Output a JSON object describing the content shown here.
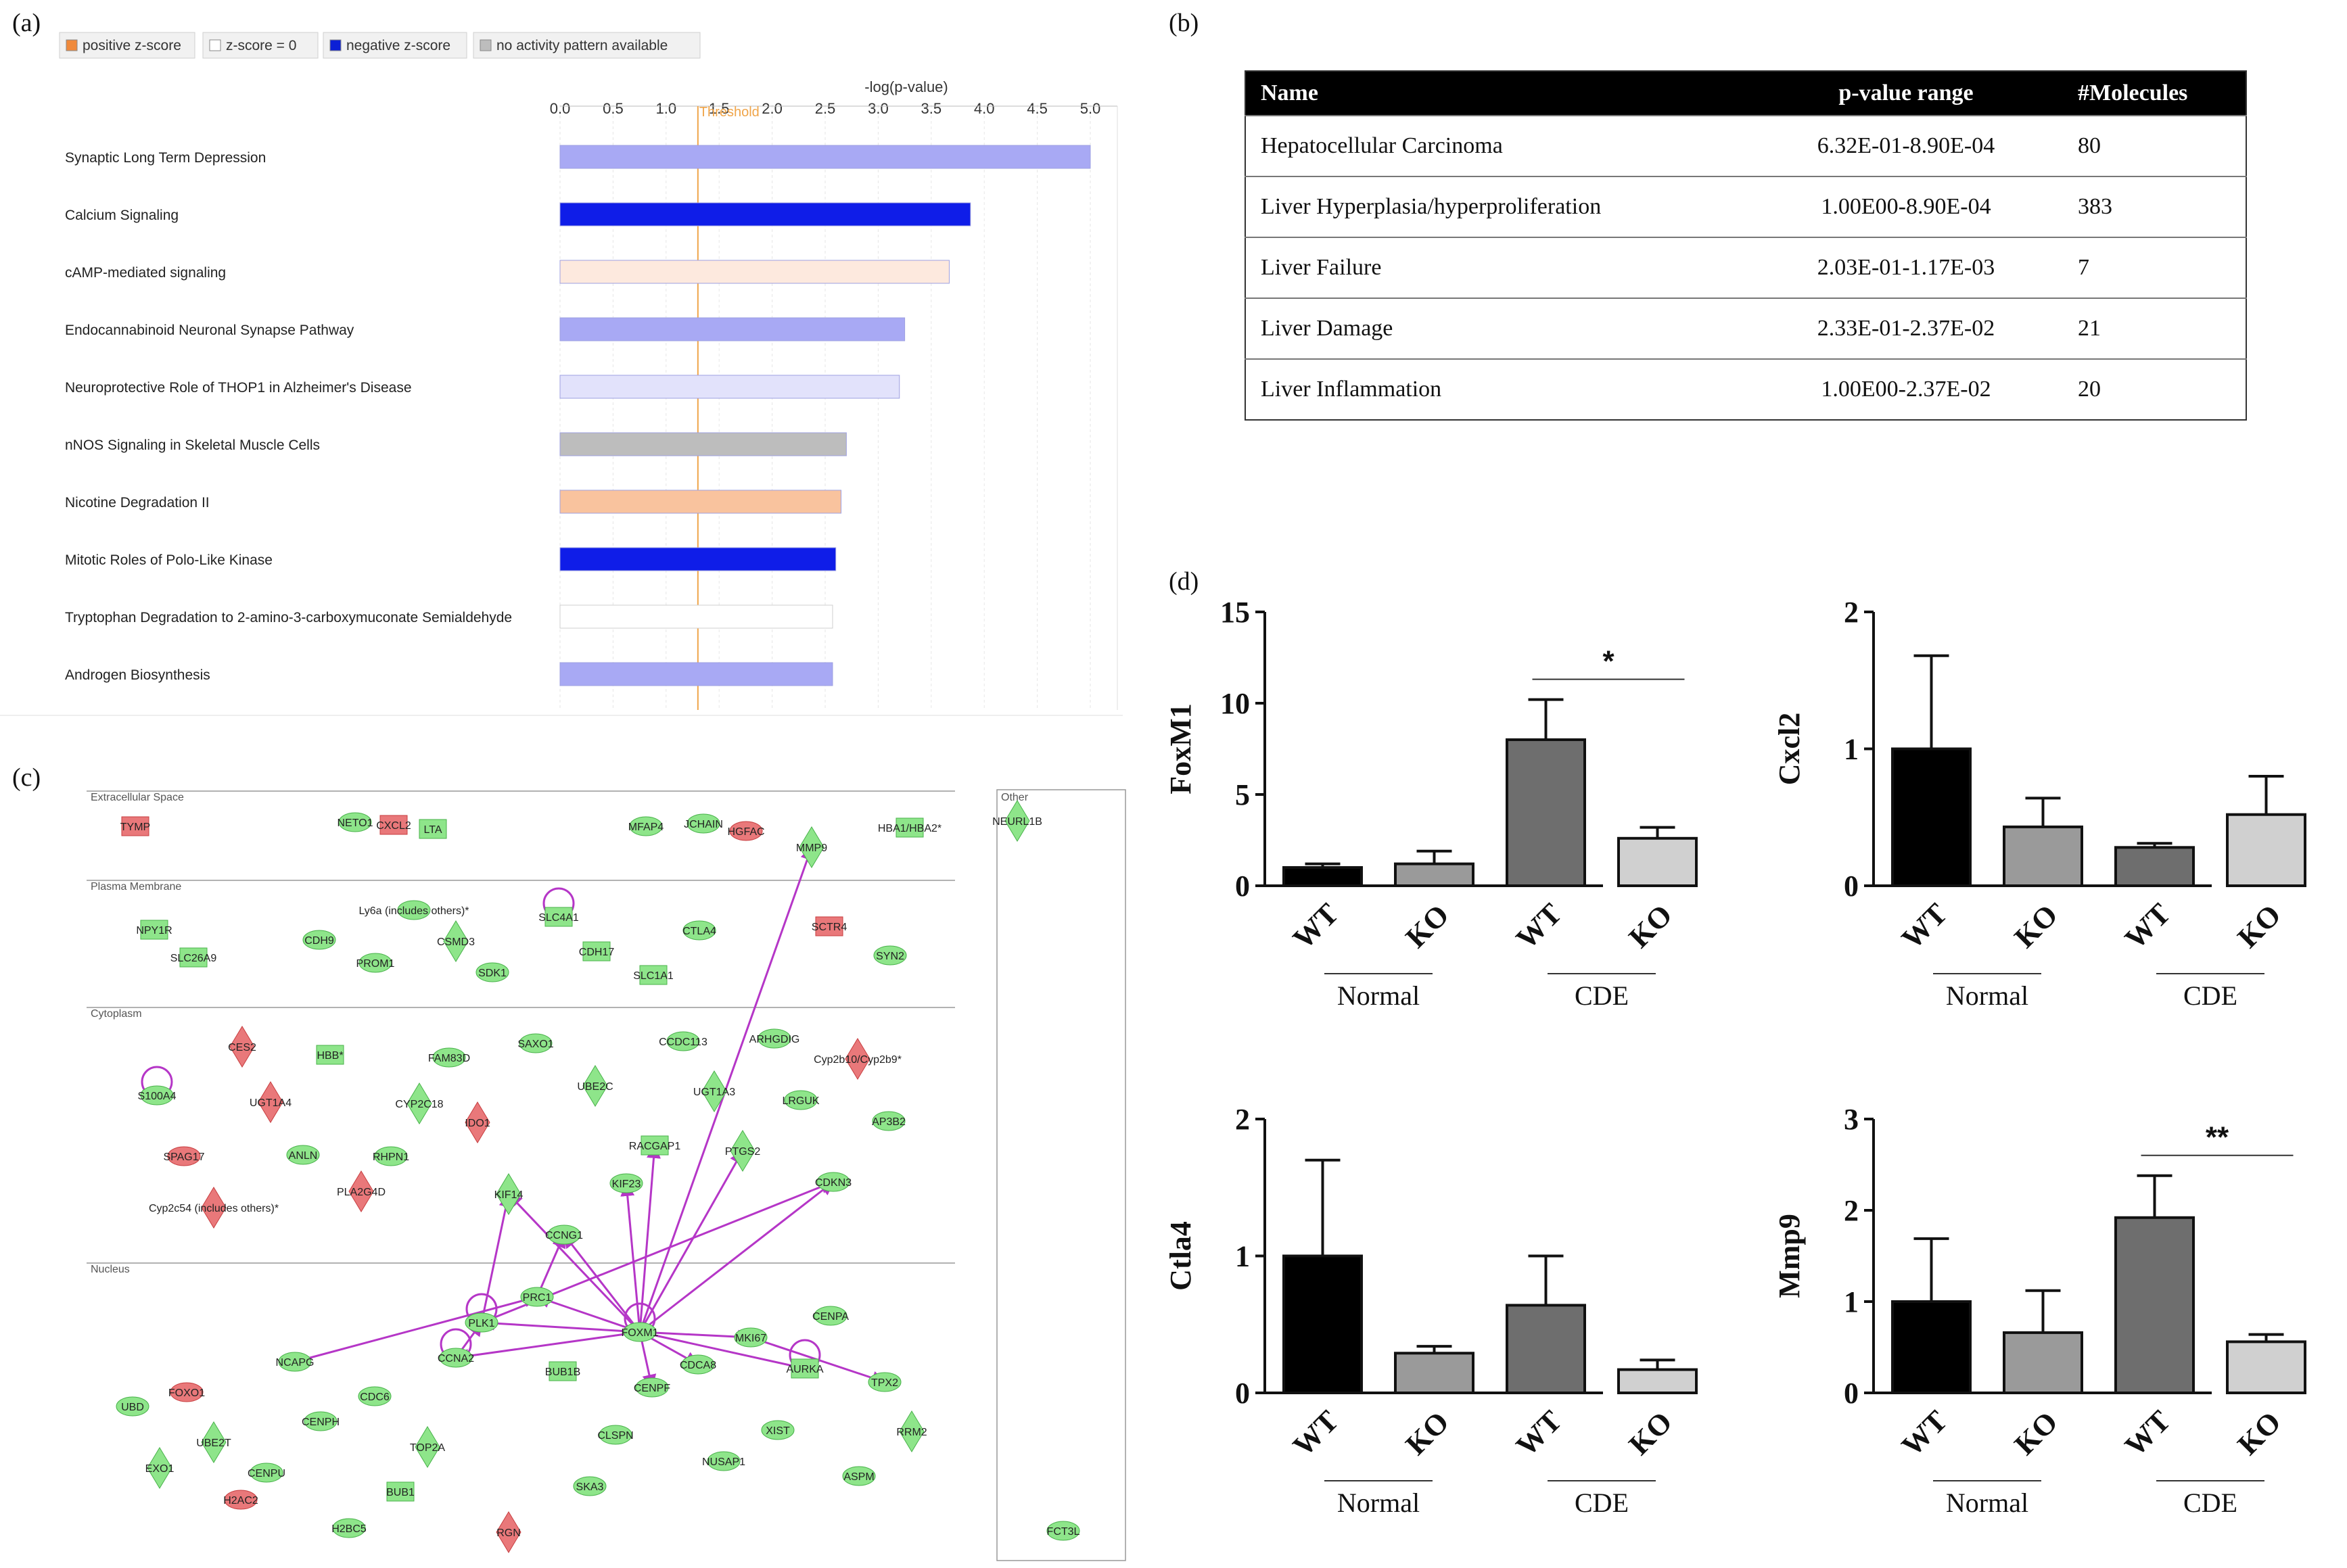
{
  "panels": {
    "a": "(a)",
    "b": "(b)",
    "c": "(c)",
    "d": "(d)"
  },
  "legend_a": [
    {
      "label": "positive z-score",
      "color": "#f08a3c"
    },
    {
      "label": "z-score = 0",
      "color": "#ffffff"
    },
    {
      "label": "negative z-score",
      "color": "#0b1fd6"
    },
    {
      "label": "no activity pattern available",
      "color": "#bdbdbd"
    }
  ],
  "chart_data": [
    {
      "type": "bar",
      "orientation": "horizontal",
      "panel": "a",
      "title": "-log(p-value)",
      "threshold_label": "Threshold",
      "threshold": 1.3,
      "xlim": [
        0,
        5.0
      ],
      "ticks": [
        "0.0",
        "0.5",
        "1.0",
        "1.5",
        "2.0",
        "2.5",
        "3.0",
        "3.5",
        "4.0",
        "4.5",
        "5.0"
      ],
      "categories": [
        "Synaptic Long Term Depression",
        "Calcium Signaling",
        "cAMP-mediated signaling",
        "Endocannabinoid Neuronal Synapse Pathway",
        "Neuroprotective Role of THOP1 in Alzheimer's Disease",
        "nNOS Signaling in Skeletal Muscle Cells",
        "Nicotine Degradation II",
        "Mitotic Roles of Polo-Like Kinase",
        "Tryptophan Degradation to 2-amino-3-carboxymuconate Semialdehyde",
        "Androgen Biosynthesis"
      ],
      "values": [
        5.0,
        3.87,
        3.67,
        3.25,
        3.2,
        2.7,
        2.65,
        2.6,
        2.57,
        2.57
      ],
      "colors": [
        "#a8a9f4",
        "#0f1de8",
        "#fde9de",
        "#a8a9f4",
        "#e2e2fb",
        "#bdbdbd",
        "#f9c39e",
        "#0f1de8",
        "#ffffff",
        "#a8a9f4"
      ]
    },
    {
      "type": "bar",
      "panel": "d",
      "ylabel": "FoxM1",
      "ylim": [
        0,
        15
      ],
      "yticks": [
        "0",
        "5",
        "10",
        "15"
      ],
      "categories": [
        "WT",
        "KO",
        "WT",
        "KO"
      ],
      "values": [
        1.0,
        1.2,
        8.0,
        2.6
      ],
      "errors": [
        0.2,
        0.7,
        2.2,
        0.6
      ],
      "colors": [
        "#000000",
        "#9a9a9a",
        "#6e6e6e",
        "#d0d0d0"
      ],
      "groups": [
        "Normal",
        "CDE"
      ],
      "significance": {
        "label": "*",
        "between": [
          2,
          3
        ]
      }
    },
    {
      "type": "bar",
      "panel": "d",
      "ylabel": "Cxcl2",
      "ylim": [
        0,
        2
      ],
      "yticks": [
        "0",
        "1",
        "2"
      ],
      "categories": [
        "WT",
        "KO",
        "WT",
        "KO"
      ],
      "values": [
        1.0,
        0.43,
        0.28,
        0.52
      ],
      "errors": [
        0.68,
        0.21,
        0.03,
        0.28
      ],
      "colors": [
        "#000000",
        "#9a9a9a",
        "#6e6e6e",
        "#d0d0d0"
      ],
      "groups": [
        "Normal",
        "CDE"
      ],
      "significance": null
    },
    {
      "type": "bar",
      "panel": "d",
      "ylabel": "Ctla4",
      "ylim": [
        0,
        2
      ],
      "yticks": [
        "0",
        "1",
        "2"
      ],
      "categories": [
        "WT",
        "KO",
        "WT",
        "KO"
      ],
      "values": [
        1.0,
        0.29,
        0.64,
        0.17
      ],
      "errors": [
        0.7,
        0.05,
        0.36,
        0.07
      ],
      "colors": [
        "#000000",
        "#9a9a9a",
        "#6e6e6e",
        "#d0d0d0"
      ],
      "groups": [
        "Normal",
        "CDE"
      ],
      "significance": null
    },
    {
      "type": "bar",
      "panel": "d",
      "ylabel": "Mmp9",
      "ylim": [
        0,
        3
      ],
      "yticks": [
        "0",
        "1",
        "2",
        "3"
      ],
      "categories": [
        "WT",
        "KO",
        "WT",
        "KO"
      ],
      "values": [
        1.0,
        0.66,
        1.92,
        0.56
      ],
      "errors": [
        0.69,
        0.46,
        0.46,
        0.08
      ],
      "colors": [
        "#000000",
        "#9a9a9a",
        "#6e6e6e",
        "#d0d0d0"
      ],
      "groups": [
        "Normal",
        "CDE"
      ],
      "significance": {
        "label": "**",
        "between": [
          2,
          3
        ]
      }
    }
  ],
  "table_b": {
    "headers": [
      "Name",
      "p-value range",
      "#Molecules"
    ],
    "rows": [
      [
        "Hepatocellular Carcinoma",
        "6.32E-01-8.90E-04",
        "80"
      ],
      [
        "Liver Hyperplasia/hyperproliferation",
        "1.00E00-8.90E-04",
        "383"
      ],
      [
        "Liver Failure",
        "2.03E-01-1.17E-03",
        "7"
      ],
      [
        "Liver Damage",
        "2.33E-01-2.37E-02",
        "21"
      ],
      [
        "Liver Inflammation",
        "1.00E00-2.37E-02",
        "20"
      ]
    ]
  },
  "network_c": {
    "compartments": [
      "Extracellular Space",
      "Plasma Membrane",
      "Cytoplasm",
      "Nucleus"
    ],
    "other_label": "Other",
    "nodes": [
      {
        "label": "TYMP",
        "color": "red",
        "shape": "rect"
      },
      {
        "label": "NETO1",
        "color": "green",
        "shape": "ellipse"
      },
      {
        "label": "CXCL2",
        "color": "red",
        "shape": "rect"
      },
      {
        "label": "LTA",
        "color": "green",
        "shape": "rect"
      },
      {
        "label": "MFAP4",
        "color": "green",
        "shape": "ellipse"
      },
      {
        "label": "JCHAIN",
        "color": "green",
        "shape": "ellipse"
      },
      {
        "label": "HGFAC",
        "color": "red",
        "shape": "ellipse"
      },
      {
        "label": "MMP9",
        "color": "green",
        "shape": "diamond"
      },
      {
        "label": "HBA1/HBA2*",
        "color": "green",
        "shape": "rect"
      },
      {
        "label": "NEURL1B",
        "color": "green",
        "shape": "diamond"
      },
      {
        "label": "NPY1R",
        "color": "green",
        "shape": "rect"
      },
      {
        "label": "SLC26A9",
        "color": "green",
        "shape": "rect"
      },
      {
        "label": "CDH9",
        "color": "green",
        "shape": "ellipse"
      },
      {
        "label": "Ly6a (includes others)*",
        "color": "green",
        "shape": "ellipse"
      },
      {
        "label": "CSMD3",
        "color": "green",
        "shape": "diamond"
      },
      {
        "label": "PROM1",
        "color": "green",
        "shape": "ellipse"
      },
      {
        "label": "SDK1",
        "color": "green",
        "shape": "ellipse"
      },
      {
        "label": "SLC4A1",
        "color": "green",
        "shape": "rect"
      },
      {
        "label": "CDH17",
        "color": "green",
        "shape": "rect"
      },
      {
        "label": "CTLA4",
        "color": "green",
        "shape": "ellipse"
      },
      {
        "label": "SLC1A1",
        "color": "green",
        "shape": "rect"
      },
      {
        "label": "SCTR4",
        "color": "red",
        "shape": "rect"
      },
      {
        "label": "SYN2",
        "color": "green",
        "shape": "ellipse"
      },
      {
        "label": "CES2",
        "color": "red",
        "shape": "diamond"
      },
      {
        "label": "HBB*",
        "color": "green",
        "shape": "rect"
      },
      {
        "label": "FAM83D",
        "color": "green",
        "shape": "ellipse"
      },
      {
        "label": "SAXO1",
        "color": "green",
        "shape": "ellipse"
      },
      {
        "label": "CCDC113",
        "color": "green",
        "shape": "ellipse"
      },
      {
        "label": "ARHGDIG",
        "color": "green",
        "shape": "ellipse"
      },
      {
        "label": "Cyp2b10/Cyp2b9*",
        "color": "red",
        "shape": "diamond"
      },
      {
        "label": "S100A4",
        "color": "green",
        "shape": "ellipse"
      },
      {
        "label": "UGT1A4",
        "color": "red",
        "shape": "diamond"
      },
      {
        "label": "CYP2C18",
        "color": "green",
        "shape": "diamond"
      },
      {
        "label": "UBE2C",
        "color": "green",
        "shape": "diamond"
      },
      {
        "label": "UGT1A3",
        "color": "green",
        "shape": "diamond"
      },
      {
        "label": "LRGUK",
        "color": "green",
        "shape": "ellipse"
      },
      {
        "label": "AP3B2",
        "color": "green",
        "shape": "ellipse"
      },
      {
        "label": "IDO1",
        "color": "red",
        "shape": "diamond"
      },
      {
        "label": "SPAG17",
        "color": "red",
        "shape": "ellipse"
      },
      {
        "label": "ANLN",
        "color": "green",
        "shape": "ellipse"
      },
      {
        "label": "RHPN1",
        "color": "green",
        "shape": "ellipse"
      },
      {
        "label": "RACGAP1",
        "color": "green",
        "shape": "rect"
      },
      {
        "label": "PTGS2",
        "color": "green",
        "shape": "diamond"
      },
      {
        "label": "PLA2G4D",
        "color": "red",
        "shape": "diamond"
      },
      {
        "label": "KIF14",
        "color": "green",
        "shape": "diamond"
      },
      {
        "label": "KIF23",
        "color": "green",
        "shape": "ellipse"
      },
      {
        "label": "CDKN3",
        "color": "green",
        "shape": "ellipse"
      },
      {
        "label": "Cyp2c54 (includes others)*",
        "color": "red",
        "shape": "diamond"
      },
      {
        "label": "CCNG1",
        "color": "green",
        "shape": "ellipse"
      },
      {
        "label": "PRC1",
        "color": "green",
        "shape": "ellipse"
      },
      {
        "label": "CENPA",
        "color": "green",
        "shape": "ellipse"
      },
      {
        "label": "PLK1",
        "color": "green",
        "shape": "ellipse"
      },
      {
        "label": "FOXM1",
        "color": "green",
        "shape": "ellipse"
      },
      {
        "label": "MKI67",
        "color": "green",
        "shape": "ellipse"
      },
      {
        "label": "NCAPG",
        "color": "green",
        "shape": "ellipse"
      },
      {
        "label": "CCNA2",
        "color": "green",
        "shape": "ellipse"
      },
      {
        "label": "BUB1B",
        "color": "green",
        "shape": "rect"
      },
      {
        "label": "CDCA8",
        "color": "green",
        "shape": "ellipse"
      },
      {
        "label": "AURKA",
        "color": "green",
        "shape": "rect"
      },
      {
        "label": "TPX2",
        "color": "green",
        "shape": "ellipse"
      },
      {
        "label": "FOXO1",
        "color": "red",
        "shape": "ellipse"
      },
      {
        "label": "CENPF",
        "color": "green",
        "shape": "ellipse"
      },
      {
        "label": "UBD",
        "color": "green",
        "shape": "ellipse"
      },
      {
        "label": "CENPH",
        "color": "green",
        "shape": "ellipse"
      },
      {
        "label": "CDC6",
        "color": "green",
        "shape": "ellipse"
      },
      {
        "label": "RRM2",
        "color": "green",
        "shape": "diamond"
      },
      {
        "label": "UBE2T",
        "color": "green",
        "shape": "diamond"
      },
      {
        "label": "TOP2A",
        "color": "green",
        "shape": "diamond"
      },
      {
        "label": "CLSPN",
        "color": "green",
        "shape": "ellipse"
      },
      {
        "label": "XIST",
        "color": "green",
        "shape": "ellipse"
      },
      {
        "label": "EXO1",
        "color": "green",
        "shape": "diamond"
      },
      {
        "label": "CENPU",
        "color": "green",
        "shape": "ellipse"
      },
      {
        "label": "NUSAP1",
        "color": "green",
        "shape": "ellipse"
      },
      {
        "label": "ASPM",
        "color": "green",
        "shape": "ellipse"
      },
      {
        "label": "H2AC2",
        "color": "red",
        "shape": "ellipse"
      },
      {
        "label": "BUB1",
        "color": "green",
        "shape": "rect"
      },
      {
        "label": "SKA3",
        "color": "green",
        "shape": "ellipse"
      },
      {
        "label": "H2BC5",
        "color": "green",
        "shape": "ellipse"
      },
      {
        "label": "RGN",
        "color": "red",
        "shape": "diamond"
      },
      {
        "label": "FCT3L",
        "color": "green",
        "shape": "ellipse"
      }
    ]
  }
}
